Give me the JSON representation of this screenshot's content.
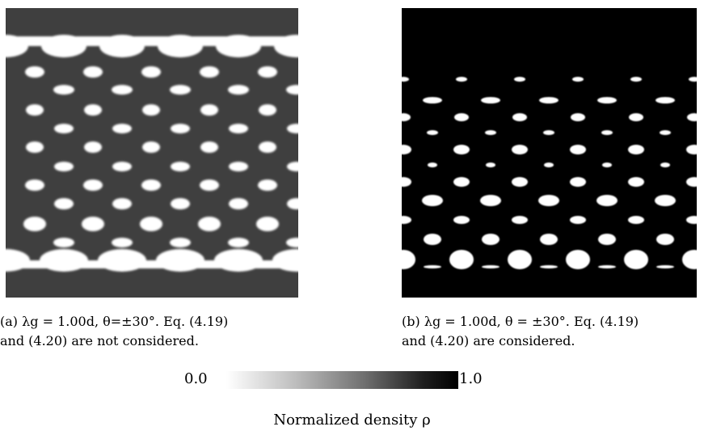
{
  "panels": [
    {
      "id": "a",
      "caption_line1": "(a) λg = 1.00d, θ=±30°. Eq. (4.19)",
      "caption_line2": "and (4.20) are not considered."
    },
    {
      "id": "b",
      "caption_line1": "(b) λg = 1.00d, θ = ±30°. Eq. (4.19)",
      "caption_line2": "and (4.20) are considered."
    }
  ],
  "colorbar": {
    "min_label": "0.0",
    "max_label": "1.0",
    "title": "Normalized density ρ"
  },
  "colors": {
    "panel_a_background": "#3f3f3f",
    "panel_b_background": "#000000",
    "hole": "#ffffff"
  }
}
